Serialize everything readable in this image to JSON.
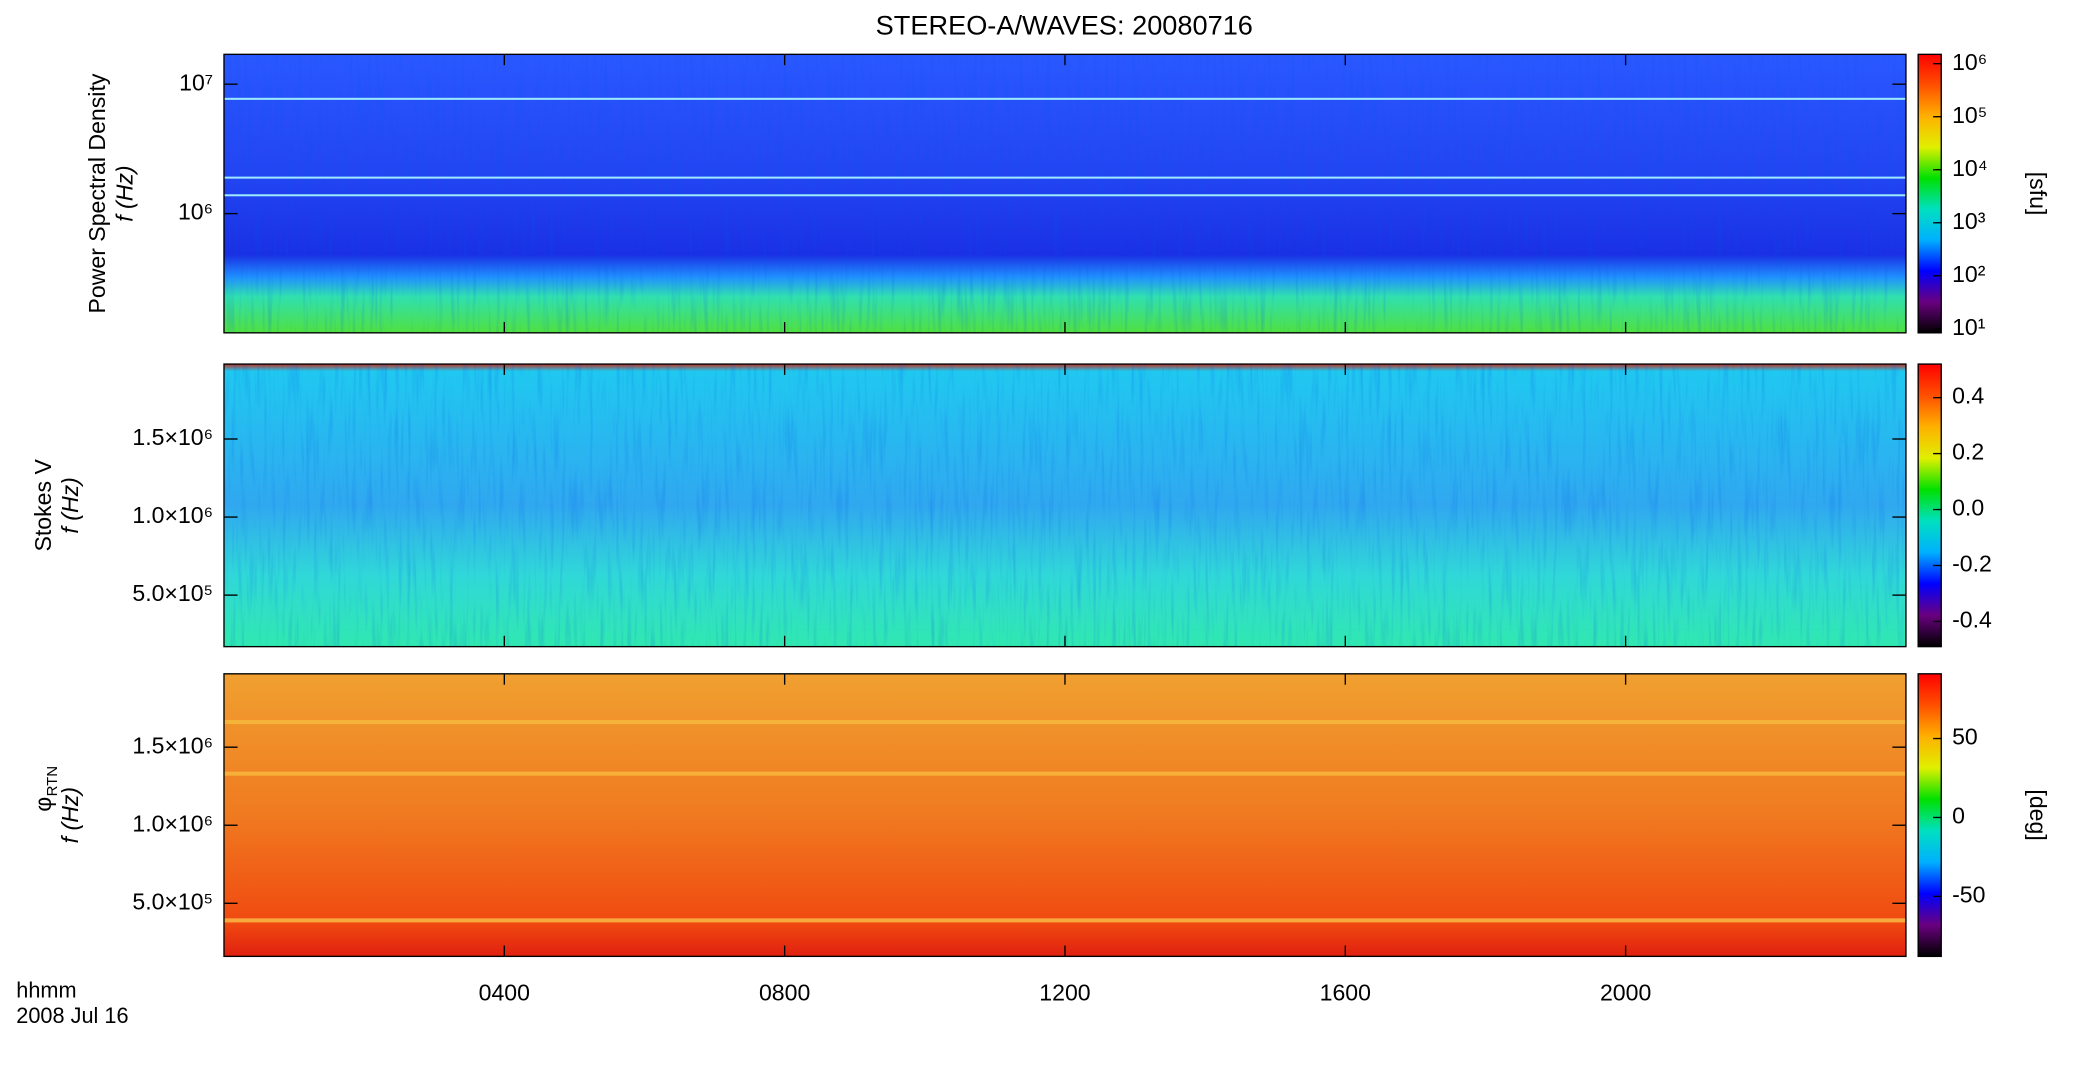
{
  "chart_data": [
    {
      "type": "spectrogram",
      "title": "STEREO-A/WAVES: 20080716",
      "ylabel": "Power Spectral Density",
      "ylabel2": "f (Hz)",
      "ylog": true,
      "ylim": [
        120000,
        17000000
      ],
      "yticks": [
        {
          "value": 1000000,
          "label": "10⁶"
        },
        {
          "value": 10000000,
          "label": "10⁷"
        }
      ],
      "colorbar": {
        "label": "[sfu]",
        "log": true,
        "clim": [
          8.4,
          1500000
        ],
        "ticks": [
          {
            "value": 10,
            "label": "10¹"
          },
          {
            "value": 100,
            "label": "10²"
          },
          {
            "value": 1000,
            "label": "10³"
          },
          {
            "value": 10000,
            "label": "10⁴"
          },
          {
            "value": 100000,
            "label": "10⁵"
          },
          {
            "value": 1000000,
            "label": "10⁶"
          }
        ]
      },
      "colormap": [
        "#000000",
        "#6a0080",
        "#0000ff",
        "#00b0ff",
        "#00e0c0",
        "#00e000",
        "#e0f000",
        "#ffb000",
        "#ff5000",
        "#ff0000"
      ]
    },
    {
      "type": "spectrogram",
      "ylabel": "Stokes V",
      "ylabel2": "f (Hz)",
      "ylog": false,
      "ylim": [
        170000,
        1980000
      ],
      "yticks": [
        {
          "value": 500000,
          "label": "5.0×10⁵"
        },
        {
          "value": 1000000,
          "label": "1.0×10⁶"
        },
        {
          "value": 1500000,
          "label": "1.5×10⁶"
        }
      ],
      "colorbar": {
        "log": false,
        "clim": [
          -0.49,
          0.52
        ],
        "ticks": [
          {
            "value": -0.4,
            "label": "-0.4"
          },
          {
            "value": -0.2,
            "label": "-0.2"
          },
          {
            "value": 0,
            "label": "0.0"
          },
          {
            "value": 0.2,
            "label": "0.2"
          },
          {
            "value": 0.4,
            "label": "0.4"
          }
        ]
      },
      "colormap": [
        "#000000",
        "#6a0080",
        "#0000ff",
        "#00b0ff",
        "#00e0c0",
        "#00e000",
        "#e0f000",
        "#ffb000",
        "#ff5000",
        "#ff0000"
      ]
    },
    {
      "type": "spectrogram",
      "ylabel_symbol": "φ",
      "ylabel_sub": "RTN",
      "ylabel2": "f (Hz)",
      "ylog": false,
      "ylim": [
        160000,
        1970000
      ],
      "yticks": [
        {
          "value": 500000,
          "label": "5.0×10⁵"
        },
        {
          "value": 1000000,
          "label": "1.0×10⁶"
        },
        {
          "value": 1500000,
          "label": "1.5×10⁶"
        }
      ],
      "colorbar": {
        "label": "[deg]",
        "log": false,
        "clim": [
          -88,
          91
        ],
        "ticks": [
          {
            "value": -50,
            "label": "-50"
          },
          0,
          50
        ]
      },
      "colormap": [
        "#000000",
        "#6a0080",
        "#0000ff",
        "#00b0ff",
        "#00e0c0",
        "#00e000",
        "#e0f000",
        "#ffb000",
        "#ff5000",
        "#ff0000"
      ],
      "xlim": [
        0,
        24
      ],
      "xticks": [
        {
          "value": 4,
          "label": "0400"
        },
        {
          "value": 8,
          "label": "0800"
        },
        {
          "value": 12,
          "label": "1200"
        },
        {
          "value": 16,
          "label": "1600"
        },
        {
          "value": 20,
          "label": "2000"
        }
      ],
      "xlabel": "hhmm",
      "date_label": "2008 Jul 16"
    }
  ]
}
